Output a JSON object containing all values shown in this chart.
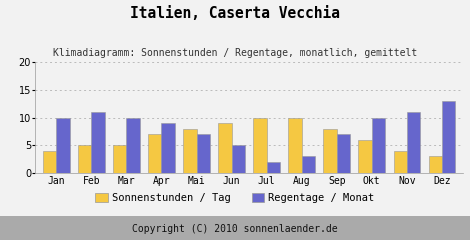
{
  "title": "Italien, Caserta Vecchia",
  "subtitle": "Klimadiagramm: Sonnenstunden / Regentage, monatlich, gemittelt",
  "months": [
    "Jan",
    "Feb",
    "Mar",
    "Apr",
    "Mai",
    "Jun",
    "Jul",
    "Aug",
    "Sep",
    "Okt",
    "Nov",
    "Dez"
  ],
  "sonnenstunden": [
    4,
    5,
    5,
    7,
    8,
    9,
    10,
    10,
    8,
    6,
    4,
    3
  ],
  "regentage": [
    10,
    11,
    10,
    9,
    7,
    5,
    2,
    3,
    7,
    10,
    11,
    13
  ],
  "bar_color_sonnen": "#f5c842",
  "bar_color_regen": "#6666cc",
  "bar_edge_color": "#999999",
  "background_color": "#f2f2f2",
  "plot_bg_color": "#f2f2f2",
  "footer_bg_color": "#aaaaaa",
  "footer_text": "Copyright (C) 2010 sonnenlaender.de",
  "legend_label_sonnen": "Sonnenstunden / Tag",
  "legend_label_regen": "Regentage / Monat",
  "ylim": [
    0,
    20
  ],
  "yticks": [
    0,
    5,
    10,
    15,
    20
  ],
  "title_fontsize": 10.5,
  "subtitle_fontsize": 7,
  "axis_fontsize": 7,
  "legend_fontsize": 7.5,
  "footer_fontsize": 7,
  "bar_width": 0.38
}
